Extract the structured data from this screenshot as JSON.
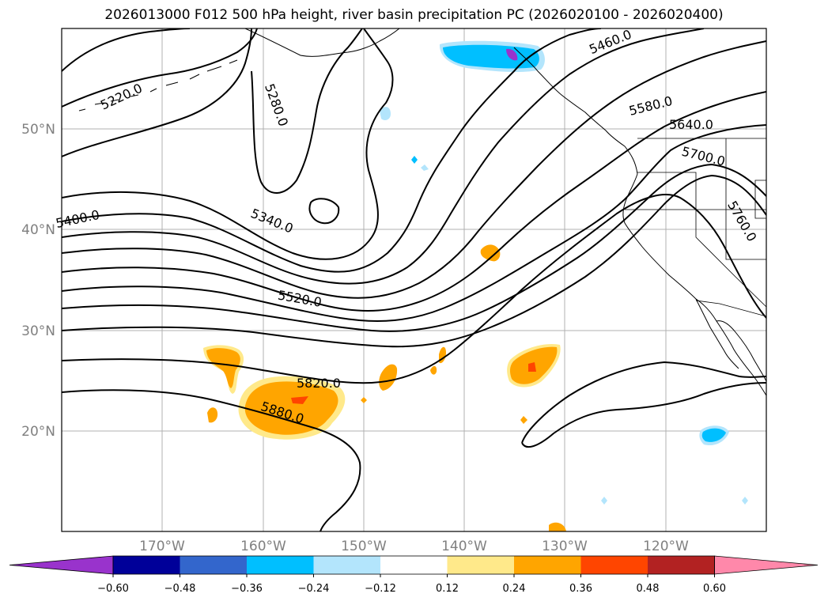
{
  "title": "2026013000 F012 500 hPa height, river basin precipitation PC (2026020100 - 2026020400)",
  "lat_labels": [
    "50°N",
    "40°N",
    "30°N",
    "20°N"
  ],
  "lon_labels": [
    "170°W",
    "160°W",
    "150°W",
    "140°W",
    "130°W",
    "120°W"
  ],
  "contour_labels": [
    "5220.0",
    "5280.0",
    "5340.0",
    "5400.0",
    "5460.0",
    "5520.0",
    "5580.0",
    "5640.0",
    "5700.0",
    "5760.0",
    "5820.0",
    "5880.0"
  ],
  "colorbar": {
    "ticks": [
      "−0.60",
      "−0.48",
      "−0.36",
      "−0.24",
      "−0.12",
      "0.12",
      "0.24",
      "0.36",
      "0.48",
      "0.60"
    ],
    "colors": [
      "#9933cc",
      "#000099",
      "#3366cc",
      "#00bfff",
      "#b3e5fc",
      "#ffffff",
      "#ffe98a",
      "#ffa500",
      "#ff4500",
      "#b22222",
      "#ff88aa"
    ]
  },
  "colors": {
    "gridline": "#b0b0b0",
    "tick_label": "#808080",
    "orange_fill": "#ffa500",
    "light_yellow_fill": "#ffe98a",
    "red_fill": "#ff4500",
    "blue_fill": "#00bfff",
    "light_blue_fill": "#b3e5fc"
  }
}
